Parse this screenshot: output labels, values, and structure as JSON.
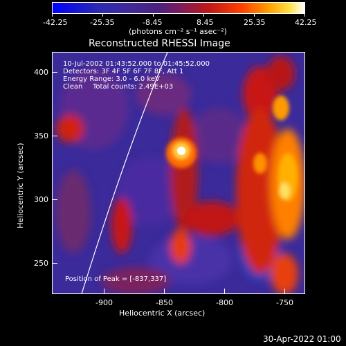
{
  "colorbar": {
    "tick_labels": [
      "-42.25",
      "-25.35",
      "-8.45",
      "8.45",
      "25.35",
      "42.25"
    ],
    "units": "(photons cm⁻² s⁻¹ asec⁻²)"
  },
  "plot": {
    "title": "Reconstructed RHESSI Image",
    "time_range": "10-Jul-2002 01:43:52.000 to 01:45:52.000",
    "detectors": "Detectors: 3F 4F 5F 6F 7F 8F, Att 1",
    "energy": "Energy Range: 3.0 - 6.0 keV",
    "clean": "Clean",
    "total_counts": "Total counts: 2.49E+03",
    "peak": "Position of Peak = [-837,337]",
    "xlabel": "Heliocentric X (arcsec)",
    "ylabel": "Heliocentric Y (arcsec)",
    "x_ticks": [
      "-900",
      "-850",
      "-800",
      "-750"
    ],
    "y_ticks": [
      "250",
      "300",
      "350",
      "400"
    ]
  },
  "footer_timestamp": "30-Apr-2022 01:00"
}
